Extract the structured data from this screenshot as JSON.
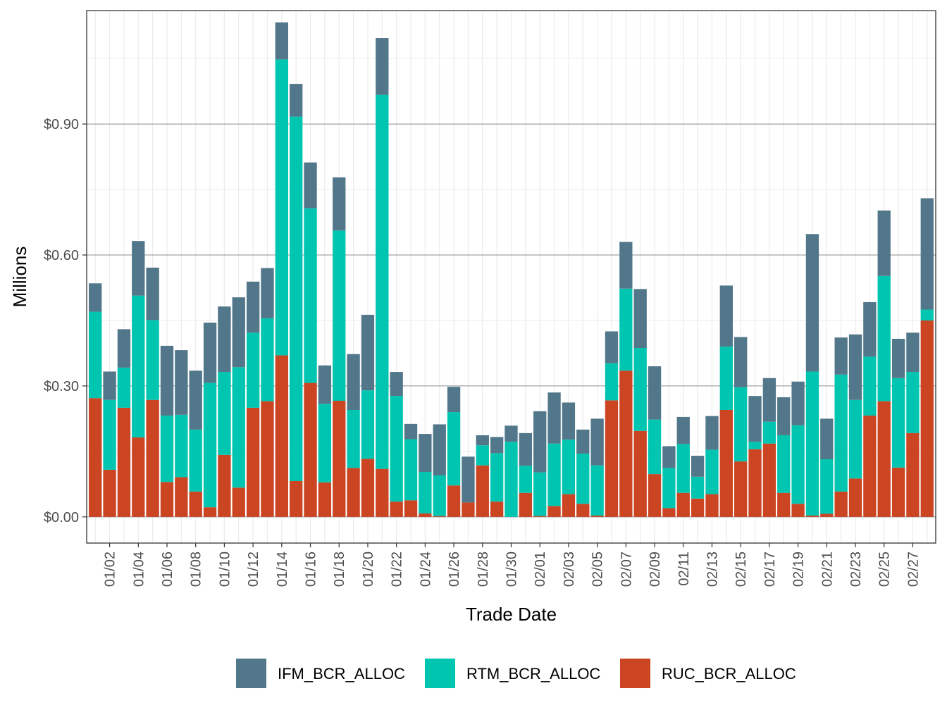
{
  "chart_data": {
    "type": "bar",
    "stacked": true,
    "xlabel": "Trade Date",
    "ylabel": "Millions",
    "ylim": [
      -0.06,
      1.16
    ],
    "y_ticks": [
      0,
      0.3,
      0.6,
      0.9
    ],
    "y_tick_labels": [
      "$0.00",
      "$0.30",
      "$0.60",
      "$0.90"
    ],
    "grid": true,
    "legend_position": "bottom",
    "categories": [
      "01/01",
      "01/02",
      "01/03",
      "01/04",
      "01/05",
      "01/06",
      "01/07",
      "01/08",
      "01/09",
      "01/10",
      "01/11",
      "01/12",
      "01/13",
      "01/14",
      "01/15",
      "01/16",
      "01/17",
      "01/18",
      "01/19",
      "01/20",
      "01/21",
      "01/22",
      "01/23",
      "01/24",
      "01/25",
      "01/26",
      "01/27",
      "01/28",
      "01/29",
      "01/30",
      "01/31",
      "02/01",
      "02/02",
      "02/03",
      "02/04",
      "02/05",
      "02/06",
      "02/07",
      "02/08",
      "02/09",
      "02/10",
      "02/11",
      "02/12",
      "02/13",
      "02/14",
      "02/15",
      "02/16",
      "02/17",
      "02/18",
      "02/19",
      "02/20",
      "02/21",
      "02/22",
      "02/23",
      "02/24",
      "02/25",
      "02/26",
      "02/27",
      "02/28"
    ],
    "x_tick_labels": [
      "01/02",
      "01/04",
      "01/06",
      "01/08",
      "01/10",
      "01/12",
      "01/14",
      "01/16",
      "01/18",
      "01/20",
      "01/22",
      "01/24",
      "01/26",
      "01/28",
      "01/30",
      "02/01",
      "02/03",
      "02/05",
      "02/07",
      "02/09",
      "02/11",
      "02/13",
      "02/15",
      "02/17",
      "02/19",
      "02/21",
      "02/23",
      "02/25",
      "02/27"
    ],
    "series": [
      {
        "name": "RUC_BCR_ALLOC",
        "color": "#cc4522",
        "values": [
          0.272,
          0.108,
          0.25,
          0.182,
          0.268,
          0.08,
          0.091,
          0.058,
          0.022,
          0.142,
          0.067,
          0.25,
          0.265,
          0.37,
          0.082,
          0.307,
          0.079,
          0.266,
          0.112,
          0.133,
          0.11,
          0.035,
          0.038,
          0.008,
          0.002,
          0.072,
          0.033,
          0.118,
          0.035,
          0.0,
          0.055,
          0.002,
          0.025,
          0.052,
          0.03,
          0.003,
          0.267,
          0.335,
          0.197,
          0.098,
          0.02,
          0.055,
          0.042,
          0.052,
          0.245,
          0.127,
          0.155,
          0.168,
          0.055,
          0.03,
          0.003,
          0.007,
          0.058,
          0.088,
          0.232,
          0.265,
          0.113,
          0.192,
          0.45
        ]
      },
      {
        "name": "RTM_BCR_ALLOC",
        "color": "#00c5b0",
        "values": [
          0.198,
          0.16,
          0.092,
          0.325,
          0.183,
          0.152,
          0.143,
          0.142,
          0.285,
          0.19,
          0.276,
          0.172,
          0.19,
          0.678,
          0.835,
          0.4,
          0.18,
          0.39,
          0.133,
          0.157,
          0.857,
          0.242,
          0.14,
          0.095,
          0.093,
          0.168,
          0.0,
          0.046,
          0.111,
          0.172,
          0.062,
          0.1,
          0.143,
          0.125,
          0.115,
          0.115,
          0.085,
          0.188,
          0.19,
          0.125,
          0.092,
          0.112,
          0.05,
          0.102,
          0.145,
          0.17,
          0.017,
          0.05,
          0.132,
          0.18,
          0.33,
          0.125,
          0.268,
          0.18,
          0.135,
          0.287,
          0.205,
          0.14,
          0.025
        ]
      },
      {
        "name": "IFM_BCR_ALLOC",
        "color": "#52778a",
        "values": [
          0.065,
          0.065,
          0.088,
          0.125,
          0.12,
          0.16,
          0.148,
          0.135,
          0.138,
          0.15,
          0.16,
          0.117,
          0.115,
          0.085,
          0.075,
          0.105,
          0.088,
          0.122,
          0.128,
          0.173,
          0.13,
          0.055,
          0.035,
          0.087,
          0.117,
          0.058,
          0.105,
          0.023,
          0.037,
          0.037,
          0.075,
          0.14,
          0.117,
          0.085,
          0.055,
          0.107,
          0.073,
          0.107,
          0.135,
          0.122,
          0.05,
          0.062,
          0.048,
          0.077,
          0.14,
          0.115,
          0.105,
          0.1,
          0.087,
          0.1,
          0.315,
          0.093,
          0.085,
          0.15,
          0.125,
          0.15,
          0.09,
          0.09,
          0.255
        ]
      }
    ],
    "legend_order": [
      "IFM_BCR_ALLOC",
      "RTM_BCR_ALLOC",
      "RUC_BCR_ALLOC"
    ]
  }
}
